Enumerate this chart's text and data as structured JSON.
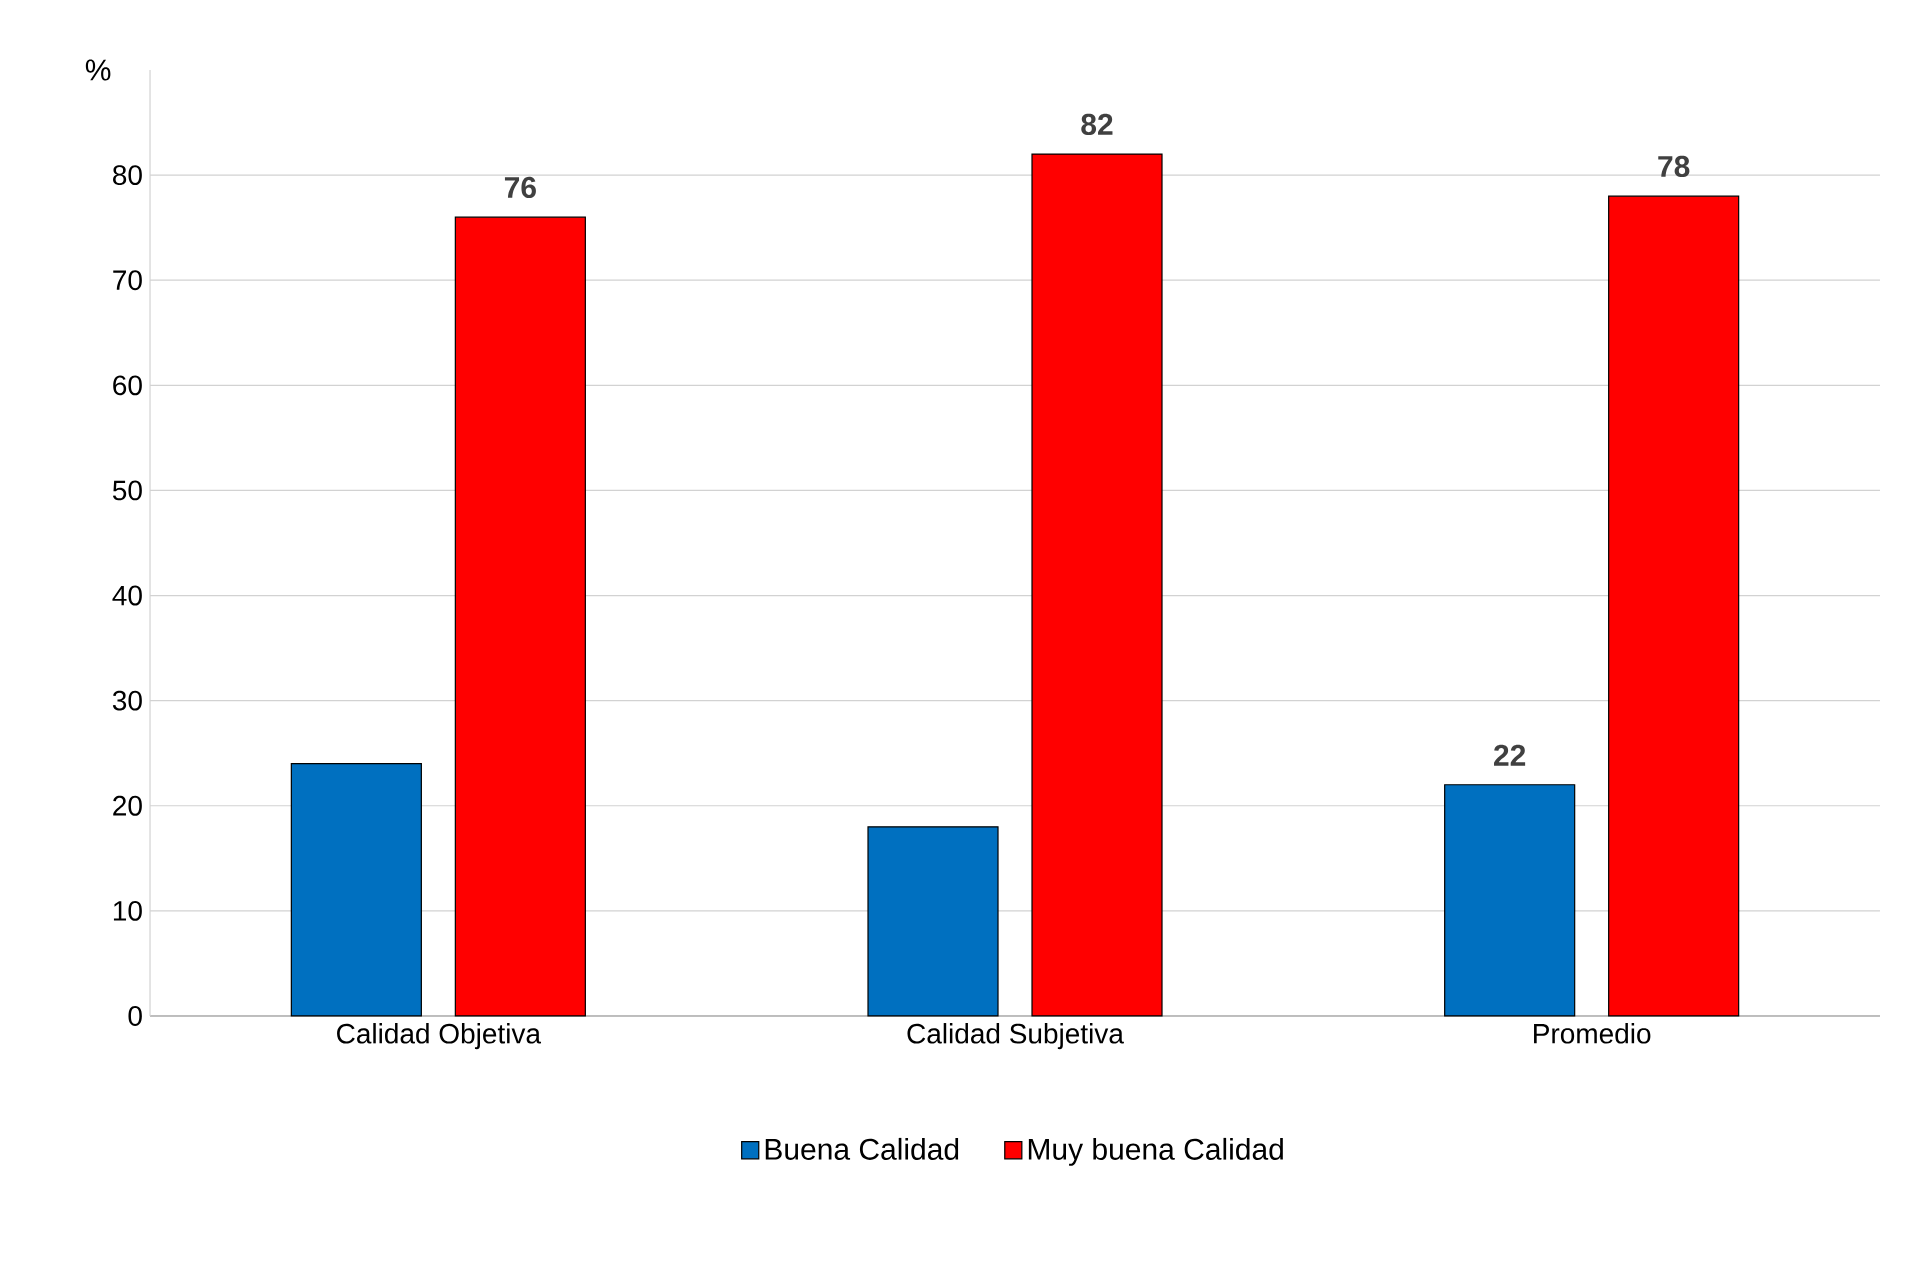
{
  "chart_data": {
    "type": "bar",
    "ylabel": "%",
    "categories": [
      "Calidad Objetiva",
      "Calidad Subjetiva",
      "Promedio"
    ],
    "series": [
      {
        "name": "Buena Calidad",
        "color": "#0070c0",
        "values": [
          24,
          18,
          22
        ],
        "value_labels": [
          null,
          null,
          "22"
        ]
      },
      {
        "name": "Muy buena Calidad",
        "color": "#ff0000",
        "values": [
          76,
          82,
          78
        ],
        "value_labels": [
          "76",
          "82",
          "78"
        ]
      }
    ],
    "ylim": [
      0,
      90
    ],
    "yticks": [
      0,
      10,
      20,
      30,
      40,
      50,
      60,
      70,
      80
    ],
    "grid": "y",
    "legend": "bottom"
  }
}
